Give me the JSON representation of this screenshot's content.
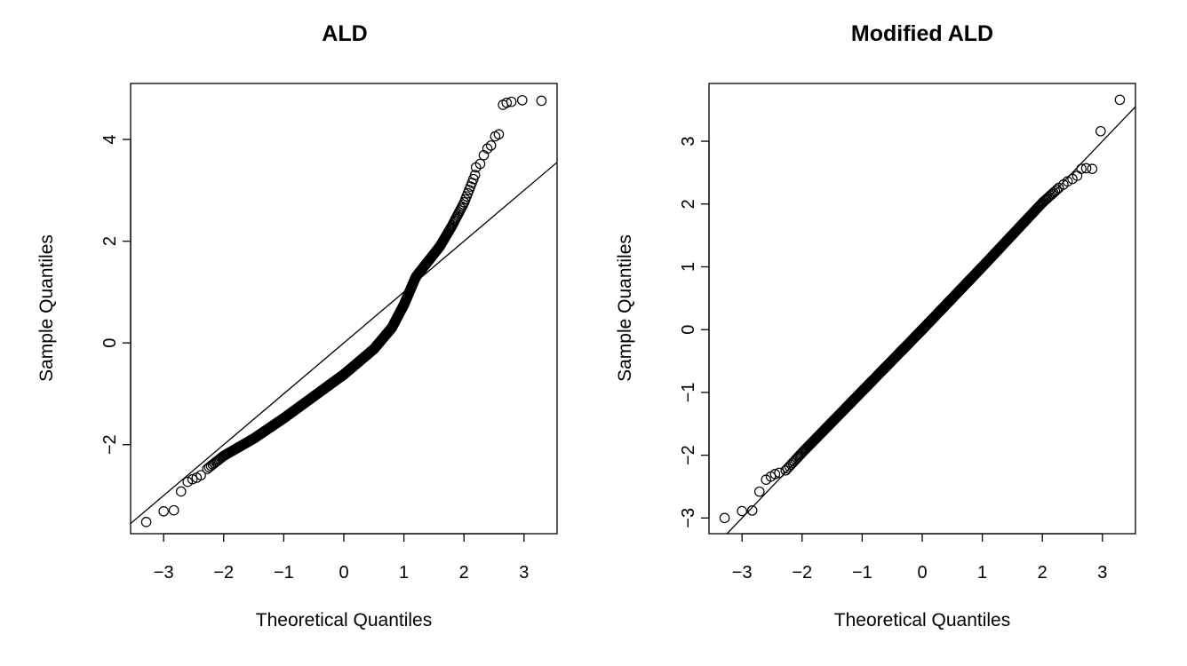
{
  "chart_data": [
    {
      "type": "scatter",
      "subtype": "normal-qq-plot",
      "title": "ALD",
      "xlabel": "Theoretical Quantiles",
      "ylabel": "Sample Quantiles",
      "xlim": [
        -3.55,
        3.55
      ],
      "ylim": [
        -3.75,
        5.1
      ],
      "xticks": [
        -3,
        -2,
        -1,
        0,
        1,
        2,
        3
      ],
      "xtick_labels": [
        "−3",
        "−2",
        "−1",
        "0",
        "1",
        "2",
        "3"
      ],
      "yticks": [
        -2,
        0,
        2,
        4
      ],
      "ytick_labels": [
        "−2",
        "0",
        "2",
        "4"
      ],
      "grid": false,
      "reference_line": {
        "intercept": 0.0,
        "slope": 1.0
      },
      "n_points": 1000,
      "curve_knots": {
        "x": [
          -2.3,
          -2.0,
          -1.5,
          -1.0,
          -0.5,
          0.0,
          0.5,
          0.8,
          1.0,
          1.2,
          1.4,
          1.6,
          1.8,
          2.0,
          2.2
        ],
        "y": [
          -2.5,
          -2.22,
          -1.88,
          -1.48,
          -1.05,
          -0.62,
          -0.12,
          0.3,
          0.75,
          1.3,
          1.6,
          1.9,
          2.3,
          2.75,
          3.35
        ]
      },
      "tail_points": [
        {
          "x": -3.29,
          "y": -3.52
        },
        {
          "x": -3.0,
          "y": -3.31
        },
        {
          "x": -2.83,
          "y": -3.29
        },
        {
          "x": -2.71,
          "y": -2.92
        },
        {
          "x": -2.6,
          "y": -2.73
        },
        {
          "x": -2.52,
          "y": -2.68
        },
        {
          "x": -2.45,
          "y": -2.65
        },
        {
          "x": -2.38,
          "y": -2.6
        },
        {
          "x": 2.2,
          "y": 3.45
        },
        {
          "x": 2.27,
          "y": 3.52
        },
        {
          "x": 2.33,
          "y": 3.69
        },
        {
          "x": 2.39,
          "y": 3.82
        },
        {
          "x": 2.45,
          "y": 3.88
        },
        {
          "x": 2.52,
          "y": 4.06
        },
        {
          "x": 2.58,
          "y": 4.1
        },
        {
          "x": 2.65,
          "y": 4.68
        },
        {
          "x": 2.71,
          "y": 4.72
        },
        {
          "x": 2.79,
          "y": 4.74
        },
        {
          "x": 2.97,
          "y": 4.77
        },
        {
          "x": 3.29,
          "y": 4.76
        }
      ]
    },
    {
      "type": "scatter",
      "subtype": "normal-qq-plot",
      "title": "Modified ALD",
      "xlabel": "Theoretical Quantiles",
      "ylabel": "Sample Quantiles",
      "xlim": [
        -3.55,
        3.55
      ],
      "ylim": [
        -3.25,
        3.92
      ],
      "xticks": [
        -3,
        -2,
        -1,
        0,
        1,
        2,
        3
      ],
      "xtick_labels": [
        "−3",
        "−2",
        "−1",
        "0",
        "1",
        "2",
        "3"
      ],
      "yticks": [
        -3,
        -2,
        -1,
        0,
        1,
        2,
        3
      ],
      "ytick_labels": [
        "−3",
        "−2",
        "−1",
        "0",
        "1",
        "2",
        "3"
      ],
      "grid": false,
      "reference_line": {
        "intercept": 0.0,
        "slope": 1.0
      },
      "n_points": 1000,
      "curve_knots": {
        "x": [
          -2.3,
          -2.0,
          -1.0,
          0.0,
          1.0,
          2.0,
          2.3
        ],
        "y": [
          -2.27,
          -1.96,
          -0.98,
          0.0,
          1.0,
          2.02,
          2.28
        ]
      },
      "tail_points": [
        {
          "x": -3.29,
          "y": -3.0
        },
        {
          "x": -3.0,
          "y": -2.89
        },
        {
          "x": -2.83,
          "y": -2.88
        },
        {
          "x": -2.71,
          "y": -2.58
        },
        {
          "x": -2.6,
          "y": -2.39
        },
        {
          "x": -2.52,
          "y": -2.34
        },
        {
          "x": -2.45,
          "y": -2.3
        },
        {
          "x": -2.38,
          "y": -2.28
        },
        {
          "x": 2.35,
          "y": 2.31
        },
        {
          "x": 2.42,
          "y": 2.36
        },
        {
          "x": 2.5,
          "y": 2.4
        },
        {
          "x": 2.58,
          "y": 2.45
        },
        {
          "x": 2.65,
          "y": 2.56
        },
        {
          "x": 2.73,
          "y": 2.57
        },
        {
          "x": 2.83,
          "y": 2.56
        },
        {
          "x": 2.97,
          "y": 3.16
        },
        {
          "x": 3.29,
          "y": 3.66
        }
      ]
    }
  ]
}
